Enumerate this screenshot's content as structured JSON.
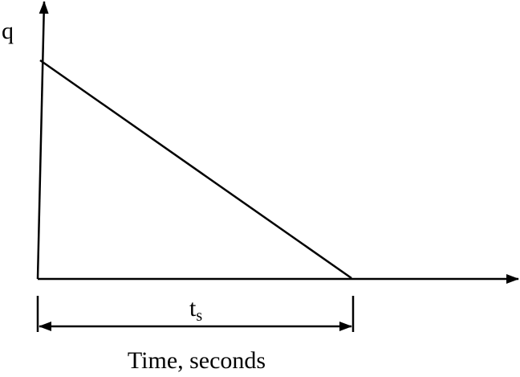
{
  "diagram": {
    "y_axis_label": "q",
    "duration_label_main": "t",
    "duration_label_sub": "s",
    "x_axis_label": "Time, seconds",
    "line_color": "#000000",
    "shape": "triangular: peak at t=0, decreasing linearly to zero at t = ts"
  }
}
